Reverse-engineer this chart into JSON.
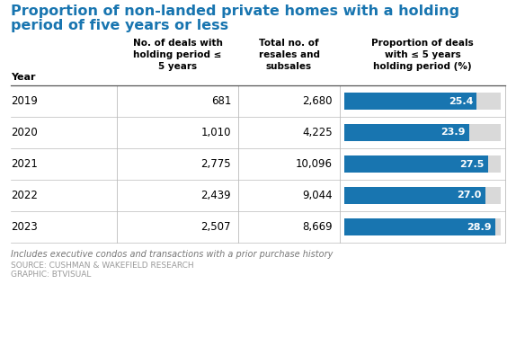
{
  "title_line1": "Proportion of non-landed private homes with a holding",
  "title_line2": "period of five years or less",
  "title_color": "#1875b0",
  "years": [
    "2019",
    "2020",
    "2021",
    "2022",
    "2023"
  ],
  "deals": [
    "681",
    "1,010",
    "2,775",
    "2,439",
    "2,507"
  ],
  "totals": [
    "2,680",
    "4,225",
    "10,096",
    "9,044",
    "8,669"
  ],
  "proportions": [
    25.4,
    23.9,
    27.5,
    27.0,
    28.9
  ],
  "proportion_labels": [
    "25.4",
    "23.9",
    "27.5",
    "27.0",
    "28.9"
  ],
  "col_header0": "Year",
  "col_header1": "No. of deals with\nholding period ≤\n5 years",
  "col_header2": "Total no. of\nresales and\nsubsales",
  "col_header3": "Proportion of deals\nwith ≤ 5 years\nholding period (%)",
  "bar_color": "#1875b0",
  "bar_bg_color": "#d9d9d9",
  "bar_max": 30.0,
  "note1": "Includes executive condos and transactions with a prior purchase history",
  "note2": "SOURCE: CUSHMAN & WAKEFIELD RESEARCH",
  "note3": "GRAPHIC: BTVISUAL",
  "background_color": "#ffffff",
  "grid_line_color": "#bbbbbb",
  "header_line_color": "#555555"
}
